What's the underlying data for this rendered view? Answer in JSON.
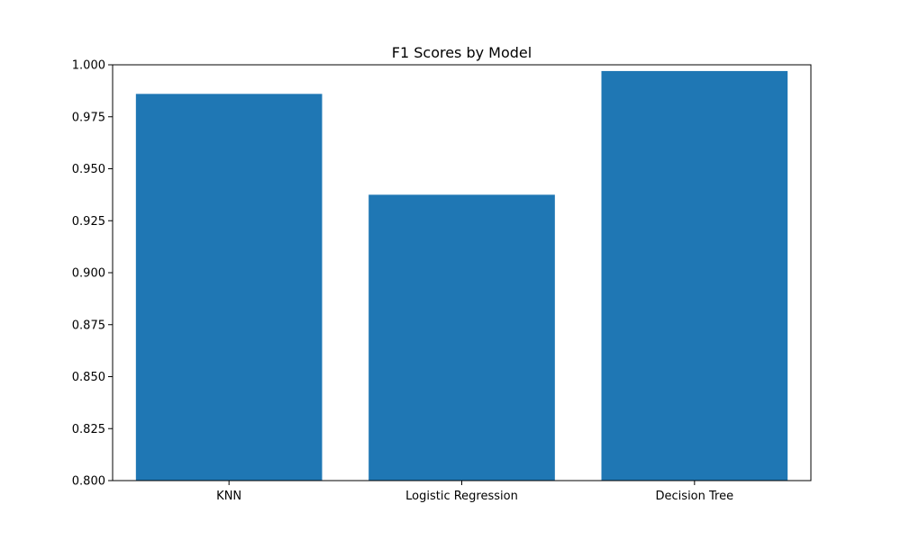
{
  "chart_data": {
    "type": "bar",
    "title": "F1 Scores by Model",
    "xlabel": "",
    "ylabel": "",
    "categories": [
      "KNN",
      "Logistic Regression",
      "Decision Tree"
    ],
    "values": [
      0.986,
      0.9375,
      0.997
    ],
    "ylim": [
      0.8,
      1.0
    ],
    "yticks": [
      "0.800",
      "0.825",
      "0.850",
      "0.875",
      "0.900",
      "0.925",
      "0.950",
      "0.975",
      "1.000"
    ],
    "grid": false,
    "legend": "none",
    "bar_color": "#1f77b4"
  }
}
